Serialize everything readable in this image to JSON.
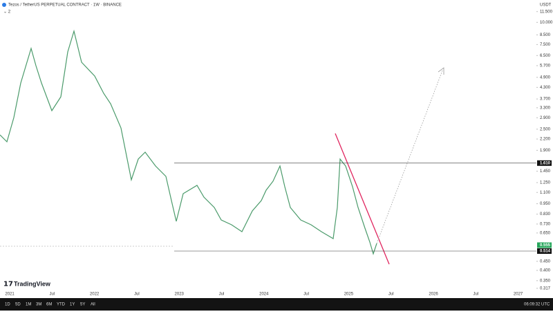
{
  "header": {
    "title": "Tezos / TetherUS PERPETUAL CONTRACT · 1W · BINANCE",
    "indicator": "⌄ 2"
  },
  "price_axis": {
    "currency": "USDT",
    "ylim": [
      0.3,
      12
    ],
    "ticks": [
      {
        "value": 11.5,
        "label": "11.500"
      },
      {
        "value": 10,
        "label": "10.000"
      },
      {
        "value": 8.5,
        "label": "8.500"
      },
      {
        "value": 7.5,
        "label": "7.500"
      },
      {
        "value": 6.5,
        "label": "6.500"
      },
      {
        "value": 5.7,
        "label": "5.700"
      },
      {
        "value": 4.9,
        "label": "4.900"
      },
      {
        "value": 4.3,
        "label": "4.300"
      },
      {
        "value": 3.7,
        "label": "3.700"
      },
      {
        "value": 3.3,
        "label": "3.300"
      },
      {
        "value": 2.9,
        "label": "2.900"
      },
      {
        "value": 2.5,
        "label": "2.500"
      },
      {
        "value": 2.2,
        "label": "2.200"
      },
      {
        "value": 1.9,
        "label": "1.900"
      },
      {
        "value": 1.45,
        "label": "1.450"
      },
      {
        "value": 1.25,
        "label": "1.250"
      },
      {
        "value": 1.1,
        "label": "1.100"
      },
      {
        "value": 0.95,
        "label": "0.950"
      },
      {
        "value": 0.83,
        "label": "0.830"
      },
      {
        "value": 0.73,
        "label": "0.730"
      },
      {
        "value": 0.65,
        "label": "0.650"
      },
      {
        "value": 0.45,
        "label": "0.450"
      },
      {
        "value": 0.4,
        "label": "0.400"
      },
      {
        "value": 0.35,
        "label": "0.350"
      },
      {
        "value": 0.317,
        "label": "0.317"
      }
    ],
    "resistance": {
      "value": 1.61,
      "label": "1.610"
    },
    "current": {
      "value": 0.555,
      "label": "0.555"
    },
    "support": {
      "value": 0.514,
      "label": "0.514"
    }
  },
  "time_axis": {
    "labels": [
      "2021",
      "Jul",
      "2022",
      "Jul",
      "2023",
      "Jul",
      "2024",
      "Jul",
      "2025",
      "Jul",
      "2026",
      "Jul",
      "2027"
    ]
  },
  "brand": "TradingView",
  "toolbar": {
    "ranges": [
      "1D",
      "5D",
      "1M",
      "3M",
      "6M",
      "YTD",
      "1Y",
      "5Y",
      "All"
    ],
    "clock": "06:09:32 UTC"
  }
}
